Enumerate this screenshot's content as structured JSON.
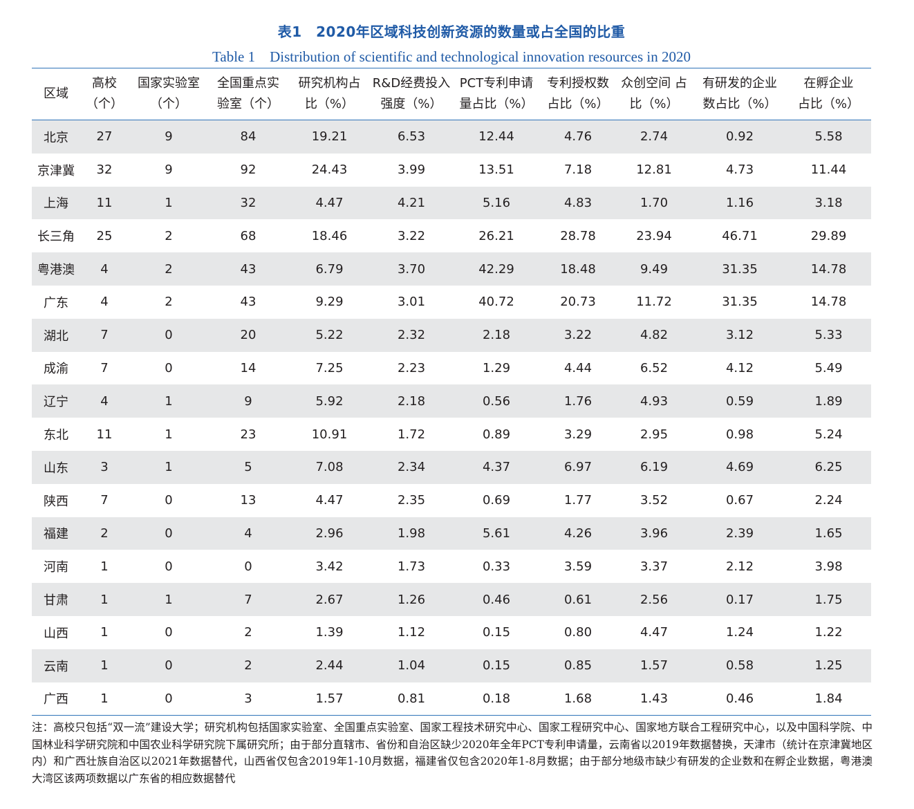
{
  "caption": {
    "cn": "表1　2020年区域科技创新资源的数量或占全国的比重",
    "en": "Table 1　Distribution of scientific and technological innovation resources in 2020"
  },
  "table": {
    "headers": [
      [
        "区域"
      ],
      [
        "高校",
        "（个）"
      ],
      [
        "国家实验室",
        "（个）"
      ],
      [
        "全国重点实",
        "验室（个）"
      ],
      [
        "研究机构占",
        "比（%）"
      ],
      [
        "R&D经费投入",
        "强度（%）"
      ],
      [
        "PCT专利申请",
        "量占比（%）"
      ],
      [
        "专利授权数",
        "占比（%）"
      ],
      [
        "众创空间 占",
        "比（%）"
      ],
      [
        "有研发的企业",
        "数占比（%）"
      ],
      [
        "在孵企业",
        "占比（%）"
      ]
    ],
    "rows": [
      [
        "北京",
        "27",
        "9",
        "84",
        "19.21",
        "6.53",
        "12.44",
        "4.76",
        "2.74",
        "0.92",
        "5.58"
      ],
      [
        "京津冀",
        "32",
        "9",
        "92",
        "24.43",
        "3.99",
        "13.51",
        "7.18",
        "12.81",
        "4.73",
        "11.44"
      ],
      [
        "上海",
        "11",
        "1",
        "32",
        "4.47",
        "4.21",
        "5.16",
        "4.83",
        "1.70",
        "1.16",
        "3.18"
      ],
      [
        "长三角",
        "25",
        "2",
        "68",
        "18.46",
        "3.22",
        "26.21",
        "28.78",
        "23.94",
        "46.71",
        "29.89"
      ],
      [
        "粤港澳",
        "4",
        "2",
        "43",
        "6.79",
        "3.70",
        "42.29",
        "18.48",
        "9.49",
        "31.35",
        "14.78"
      ],
      [
        "广东",
        "4",
        "2",
        "43",
        "9.29",
        "3.01",
        "40.72",
        "20.73",
        "11.72",
        "31.35",
        "14.78"
      ],
      [
        "湖北",
        "7",
        "0",
        "20",
        "5.22",
        "2.32",
        "2.18",
        "3.22",
        "4.82",
        "3.12",
        "5.33"
      ],
      [
        "成渝",
        "7",
        "0",
        "14",
        "7.25",
        "2.23",
        "1.29",
        "4.44",
        "6.52",
        "4.12",
        "5.49"
      ],
      [
        "辽宁",
        "4",
        "1",
        "9",
        "5.92",
        "2.18",
        "0.56",
        "1.76",
        "4.93",
        "0.59",
        "1.89"
      ],
      [
        "东北",
        "11",
        "1",
        "23",
        "10.91",
        "1.72",
        "0.89",
        "3.29",
        "2.95",
        "0.98",
        "5.24"
      ],
      [
        "山东",
        "3",
        "1",
        "5",
        "7.08",
        "2.34",
        "4.37",
        "6.97",
        "6.19",
        "4.69",
        "6.25"
      ],
      [
        "陕西",
        "7",
        "0",
        "13",
        "4.47",
        "2.35",
        "0.69",
        "1.77",
        "3.52",
        "0.67",
        "2.24"
      ],
      [
        "福建",
        "2",
        "0",
        "4",
        "2.96",
        "1.98",
        "5.61",
        "4.26",
        "3.96",
        "2.39",
        "1.65"
      ],
      [
        "河南",
        "1",
        "0",
        "0",
        "3.42",
        "1.73",
        "0.33",
        "3.59",
        "3.37",
        "2.12",
        "3.98"
      ],
      [
        "甘肃",
        "1",
        "1",
        "7",
        "2.67",
        "1.26",
        "0.46",
        "0.61",
        "2.56",
        "0.17",
        "1.75"
      ],
      [
        "山西",
        "1",
        "0",
        "2",
        "1.39",
        "1.12",
        "0.15",
        "0.80",
        "4.47",
        "1.24",
        "1.22"
      ],
      [
        "云南",
        "1",
        "0",
        "2",
        "2.44",
        "1.04",
        "0.15",
        "0.85",
        "1.57",
        "0.58",
        "1.25"
      ],
      [
        "广西",
        "1",
        "0",
        "3",
        "1.57",
        "0.81",
        "0.18",
        "1.68",
        "1.43",
        "0.46",
        "1.84"
      ]
    ]
  },
  "note": "注：高校只包括“双一流”建设大学；研究机构包括国家实验室、全国重点实验室、国家工程技术研究中心、国家工程研究中心、国家地方联合工程研究中心，以及中国科学院、中国林业科学研究院和中国农业科学研究院下属研究所；由于部分直辖市、省份和自治区缺少2020年全年PCT专利申请量，云南省以2019年数据替换，天津市（统计在京津冀地区内）和广西壮族自治区以2021年数据替代，山西省仅包含2019年1-10月数据，福建省仅包含2020年1-8月数据；由于部分地级市缺少有研发的企业数和在孵企业数据，粤港澳大湾区该两项数据以广东省的相应数据替代"
}
